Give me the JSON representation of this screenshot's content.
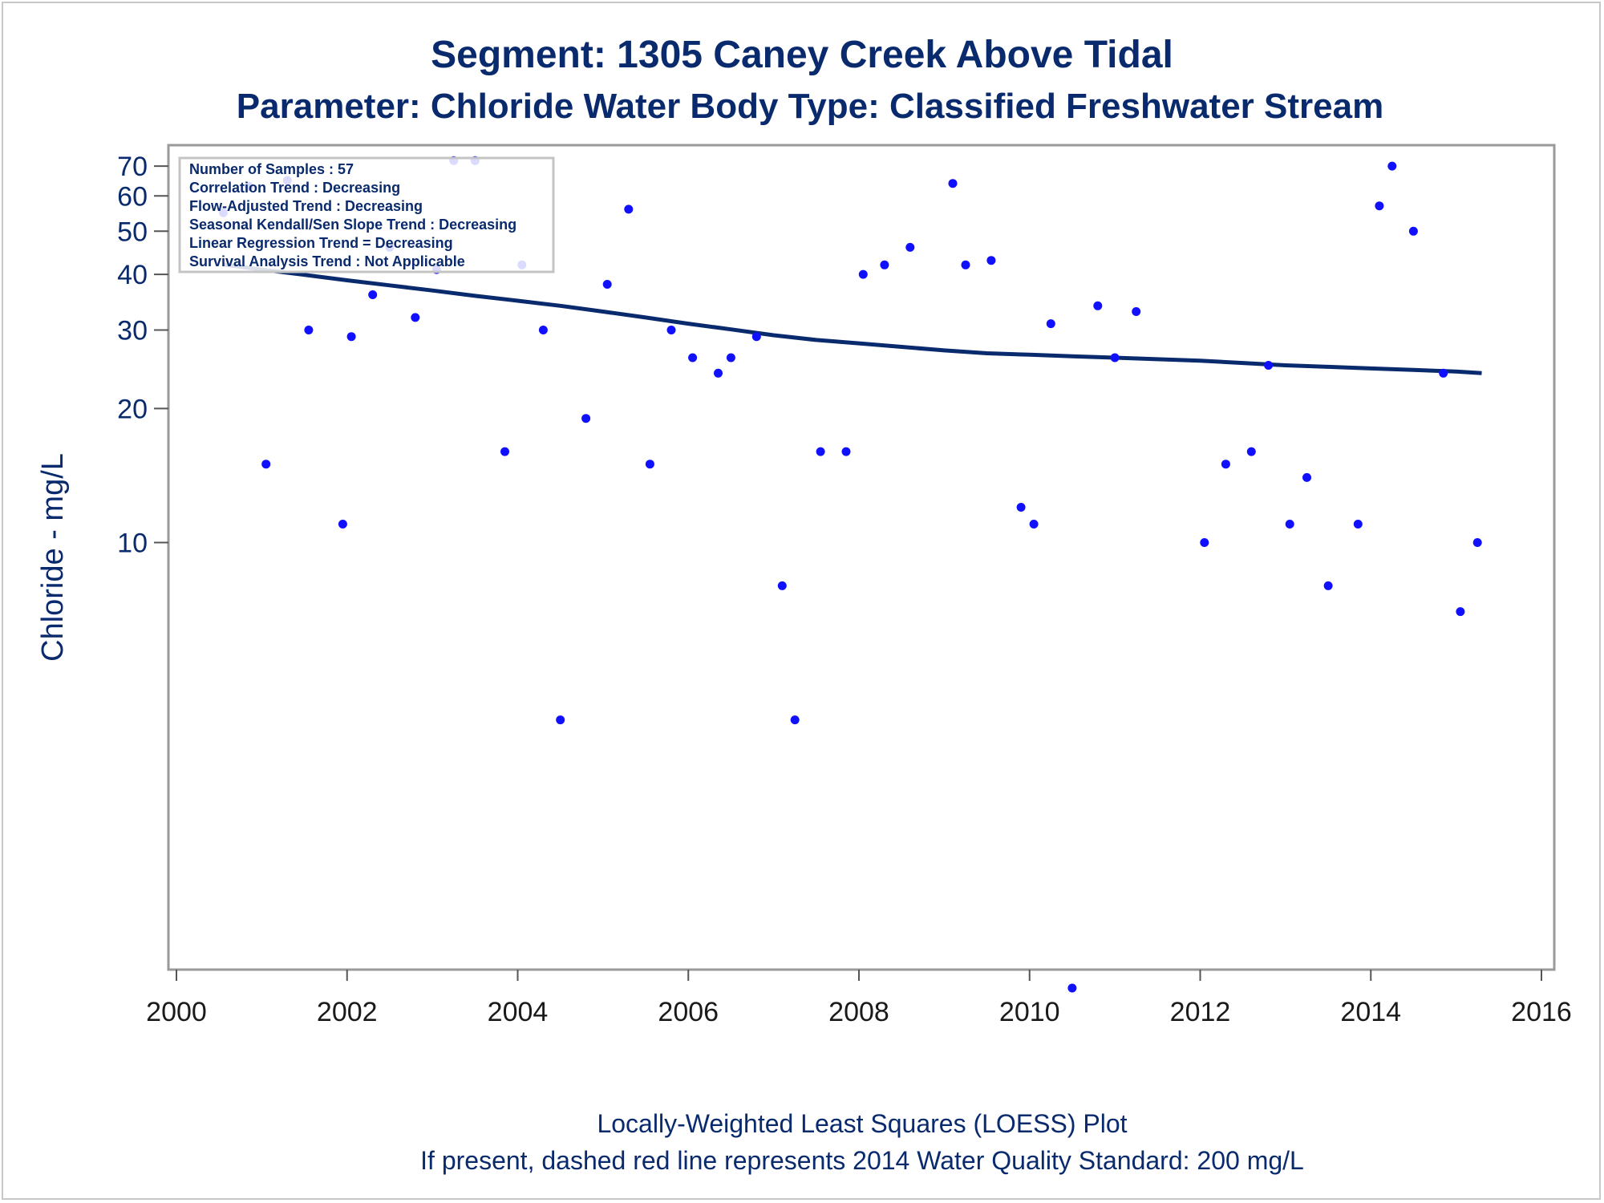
{
  "chart_data": {
    "type": "scatter",
    "title": "Segment: 1305  Caney Creek Above Tidal",
    "subtitle": "Parameter: Chloride   Water Body Type: Classified Freshwater Stream",
    "ylabel": "Chloride - mg/L",
    "xlabel": "",
    "footnote1": "Locally-Weighted Least Squares (LOESS) Plot",
    "footnote2": "If present, dashed red line represents 2014 Water Quality Standard: 200    mg/L",
    "x_scale": "linear",
    "y_scale": "log",
    "xlim": [
      2000,
      2016
    ],
    "ylim": [
      1.1,
      78
    ],
    "x_ticks": [
      2000,
      2002,
      2004,
      2006,
      2008,
      2010,
      2012,
      2014,
      2016
    ],
    "y_ticks": [
      10,
      20,
      30,
      40,
      50,
      60,
      70
    ],
    "grid": false,
    "point_color": "#1010ff",
    "line_color": "#0a2a6e",
    "stats_box": [
      "Number of Samples : 57",
      "Correlation Trend : Decreasing",
      "Flow-Adjusted Trend : Decreasing",
      "Seasonal Kendall/Sen Slope Trend : Decreasing",
      "Linear Regression Trend = Decreasing",
      "Survival Analysis Trend : Not Applicable"
    ],
    "series": [
      {
        "kind": "points",
        "x": [
          2000.55,
          2000.85,
          2001.05,
          2001.3,
          2001.55,
          2001.95,
          2002.05,
          2002.3,
          2002.5,
          2002.8,
          2003.05,
          2003.25,
          2003.5,
          2003.85,
          2004.05,
          2004.3,
          2004.5,
          2004.8,
          2005.05,
          2005.3,
          2005.55,
          2005.8,
          2006.05,
          2006.35,
          2006.5,
          2006.8,
          2007.1,
          2007.25,
          2007.55,
          2007.85,
          2008.05,
          2008.3,
          2008.6,
          2009.1,
          2009.25,
          2009.55,
          2009.9,
          2010.05,
          2010.25,
          2010.5,
          2010.8,
          2011.0,
          2011.25,
          2012.05,
          2012.3,
          2012.6,
          2012.8,
          2013.05,
          2013.25,
          2013.5,
          2013.85,
          2014.1,
          2014.25,
          2014.5,
          2014.85,
          2015.05,
          2015.25
        ],
        "y": [
          55,
          63,
          15,
          65,
          30,
          11,
          29,
          36,
          46,
          32,
          41,
          72,
          72,
          16,
          42,
          30,
          4,
          19,
          38,
          56,
          15,
          30,
          26,
          24,
          26,
          29,
          8,
          4,
          16,
          16,
          40,
          42,
          46,
          64,
          42,
          43,
          12,
          11,
          31,
          1,
          34,
          26,
          33,
          10,
          15,
          16,
          25,
          11,
          14,
          8,
          11,
          57,
          70,
          50,
          24,
          7,
          10
        ]
      },
      {
        "kind": "loess",
        "x": [
          2000.55,
          2001.0,
          2001.5,
          2002.0,
          2002.5,
          2003.0,
          2003.5,
          2004.0,
          2004.5,
          2005.0,
          2005.5,
          2006.0,
          2006.5,
          2007.0,
          2007.5,
          2008.0,
          2008.5,
          2009.0,
          2009.5,
          2010.0,
          2010.5,
          2011.0,
          2011.5,
          2012.0,
          2012.5,
          2013.0,
          2013.5,
          2014.0,
          2014.5,
          2015.0,
          2015.3
        ],
        "y": [
          42.1,
          41.0,
          39.9,
          38.8,
          37.8,
          36.8,
          35.8,
          34.9,
          34.0,
          33.0,
          32.0,
          31.0,
          30.1,
          29.2,
          28.5,
          28.0,
          27.5,
          27.0,
          26.6,
          26.4,
          26.2,
          26.0,
          25.8,
          25.6,
          25.3,
          25.0,
          24.8,
          24.6,
          24.4,
          24.2,
          24.0
        ]
      }
    ]
  }
}
